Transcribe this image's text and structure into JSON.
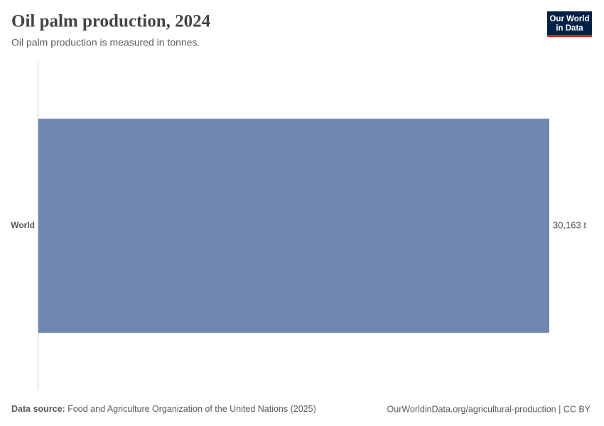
{
  "chart_data": {
    "type": "bar",
    "orientation": "horizontal",
    "title": "Oil palm production, 2024",
    "subtitle": "Oil palm production is measured in tonnes.",
    "categories": [
      "World"
    ],
    "values": [
      30163
    ],
    "value_labels": [
      "30,163 t"
    ],
    "color": "#6f87ae",
    "source_label": "Data source:",
    "source": "Food and Agriculture Organization of the United Nations (2025)",
    "url": "OurWorldinData.org/agricultural-production | CC BY",
    "logo": [
      "Our World",
      "in Data"
    ]
  }
}
